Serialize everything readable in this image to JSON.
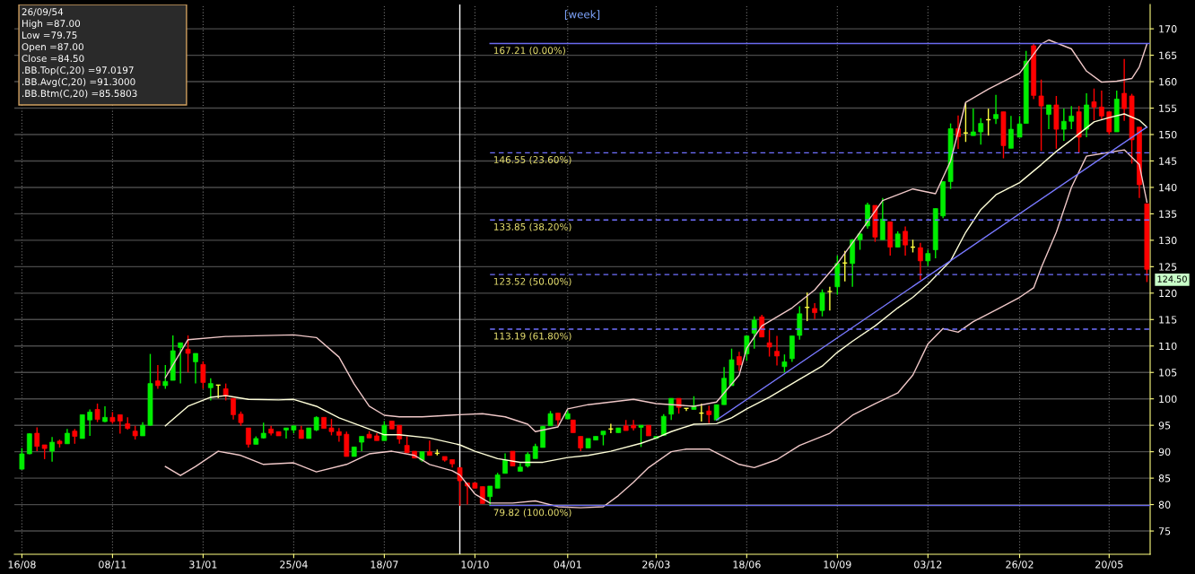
{
  "chart_data": {
    "type": "candlestick",
    "title": "[week]",
    "x": [
      "2010-08-16",
      "2010-08-23",
      "2010-08-30",
      "2010-09-06",
      "2010-09-13",
      "2010-09-20",
      "2010-09-27",
      "2010-10-04",
      "2010-10-11",
      "2010-10-18",
      "2010-10-25",
      "2010-11-01",
      "2010-11-08",
      "2010-11-15",
      "2010-11-22",
      "2010-11-29",
      "2010-12-06",
      "2010-12-13",
      "2010-12-20",
      "2010-12-27",
      "2011-01-03",
      "2011-01-10",
      "2011-01-17",
      "2011-01-24",
      "2011-01-31",
      "2011-02-07",
      "2011-02-14",
      "2011-02-21",
      "2011-02-28",
      "2011-03-07",
      "2011-03-14",
      "2011-03-21",
      "2011-03-28",
      "2011-04-04",
      "2011-04-11",
      "2011-04-18",
      "2011-04-25",
      "2011-05-02",
      "2011-05-09",
      "2011-05-16",
      "2011-05-23",
      "2011-05-30",
      "2011-06-06",
      "2011-06-13",
      "2011-06-20",
      "2011-06-27",
      "2011-07-04",
      "2011-07-11",
      "2011-07-18",
      "2011-07-25",
      "2011-08-01",
      "2011-08-08",
      "2011-08-15",
      "2011-08-22",
      "2011-08-29",
      "2011-09-05",
      "2011-09-12",
      "2011-09-19",
      "2011-09-26",
      "2011-10-03",
      "2011-10-10",
      "2011-10-17",
      "2011-10-24",
      "2011-10-31",
      "2011-11-07",
      "2011-11-14",
      "2011-11-21",
      "2011-11-28",
      "2011-12-05",
      "2011-12-12",
      "2011-12-19",
      "2011-12-26",
      "2012-01-04",
      "2012-01-09",
      "2012-01-16",
      "2012-01-23",
      "2012-01-30",
      "2012-02-06",
      "2012-02-13",
      "2012-02-20",
      "2012-02-27",
      "2012-03-05",
      "2012-03-12",
      "2012-03-19",
      "2012-03-26",
      "2012-04-02",
      "2012-04-09",
      "2012-04-16",
      "2012-04-23",
      "2012-04-30",
      "2012-05-07",
      "2012-05-14",
      "2012-05-21",
      "2012-05-28",
      "2012-06-04",
      "2012-06-11",
      "2012-06-18",
      "2012-06-25",
      "2012-07-02",
      "2012-07-09",
      "2012-07-16",
      "2012-07-23",
      "2012-07-30",
      "2012-08-06",
      "2012-08-13",
      "2012-08-20",
      "2012-08-27",
      "2012-09-03",
      "2012-09-10",
      "2012-09-17",
      "2012-09-24",
      "2012-10-01",
      "2012-10-08",
      "2012-10-15",
      "2012-10-22",
      "2012-10-29",
      "2012-11-05",
      "2012-11-12",
      "2012-11-19",
      "2012-11-26",
      "2012-12-03",
      "2012-12-10",
      "2012-12-17",
      "2012-12-24",
      "2012-12-31",
      "2013-01-07",
      "2013-01-14",
      "2013-01-21",
      "2013-01-28",
      "2013-02-04",
      "2013-02-11",
      "2013-02-18",
      "2013-02-26",
      "2013-03-04",
      "2013-03-11",
      "2013-03-18",
      "2013-03-25",
      "2013-04-01",
      "2013-04-08",
      "2013-04-15",
      "2013-04-22",
      "2013-04-29",
      "2013-05-06",
      "2013-05-13",
      "2013-05-20",
      "2013-05-27",
      "2013-06-03",
      "2013-06-10",
      "2013-06-17",
      "2013-06-24"
    ],
    "ohlc": [
      [
        86.7,
        90.7,
        86.6,
        89.6
      ],
      [
        89.6,
        93.5,
        89.5,
        93.4
      ],
      [
        93.5,
        94.6,
        90.1,
        91.0
      ],
      [
        91.3,
        91.3,
        88.6,
        90.6
      ],
      [
        90.1,
        92.8,
        88.1,
        91.8
      ],
      [
        92.0,
        92.3,
        90.8,
        91.5
      ],
      [
        91.5,
        94.3,
        91.5,
        93.5
      ],
      [
        93.9,
        94.3,
        91.5,
        92.9
      ],
      [
        92.5,
        97.0,
        92.5,
        97.0
      ],
      [
        96.0,
        98.0,
        93.0,
        97.5
      ],
      [
        98.0,
        99.1,
        95.6,
        96.1
      ],
      [
        95.7,
        98.6,
        95.6,
        96.5
      ],
      [
        96.5,
        97.5,
        95.3,
        95.7
      ],
      [
        97.0,
        97.0,
        93.4,
        95.8
      ],
      [
        95.3,
        96.5,
        94.2,
        94.4
      ],
      [
        93.9,
        94.9,
        92.3,
        93.0
      ],
      [
        93.0,
        95.6,
        93.0,
        95.0
      ],
      [
        95.0,
        108.5,
        94.9,
        102.9
      ],
      [
        103.4,
        106.4,
        101.9,
        102.5
      ],
      [
        102.5,
        106.4,
        101.9,
        103.3
      ],
      [
        103.5,
        112.0,
        103.5,
        109.1
      ],
      [
        109.7,
        110.6,
        102.9,
        110.6
      ],
      [
        109.4,
        112.0,
        105.0,
        108.6
      ],
      [
        107.0,
        108.6,
        102.9,
        108.6
      ],
      [
        106.5,
        107.1,
        101.9,
        103.1
      ],
      [
        102.1,
        103.9,
        99.7,
        102.9
      ],
      [
        102.6,
        102.6,
        100.1,
        102.6
      ],
      [
        101.9,
        102.9,
        99.7,
        100.5
      ],
      [
        100.1,
        100.1,
        96.1,
        97.0
      ],
      [
        97.1,
        97.6,
        94.9,
        95.5
      ],
      [
        94.5,
        94.5,
        90.8,
        91.4
      ],
      [
        91.4,
        92.9,
        91.4,
        92.5
      ],
      [
        92.6,
        95.5,
        92.5,
        93.5
      ],
      [
        94.3,
        94.9,
        93.1,
        93.5
      ],
      [
        93.8,
        93.8,
        93.0,
        93.0
      ],
      [
        94.1,
        94.5,
        92.5,
        94.5
      ],
      [
        94.1,
        94.9,
        93.5,
        94.9
      ],
      [
        94.1,
        94.9,
        92.5,
        92.5
      ],
      [
        92.5,
        94.5,
        92.5,
        94.5
      ],
      [
        94.1,
        96.7,
        93.9,
        96.5
      ],
      [
        96.5,
        96.5,
        94.4,
        94.4
      ],
      [
        94.5,
        96.2,
        93.1,
        93.8
      ],
      [
        93.8,
        94.5,
        91.9,
        93.1
      ],
      [
        93.3,
        93.8,
        89.1,
        89.1
      ],
      [
        89.1,
        90.9,
        89.1,
        90.9
      ],
      [
        91.8,
        92.9,
        90.1,
        92.9
      ],
      [
        93.3,
        93.9,
        92.6,
        92.6
      ],
      [
        93.0,
        93.5,
        92.1,
        92.1
      ],
      [
        92.1,
        95.8,
        92.1,
        95.0
      ],
      [
        95.8,
        95.8,
        94.3,
        94.3
      ],
      [
        95.0,
        95.0,
        91.5,
        92.4
      ],
      [
        91.2,
        92.9,
        89.8,
        89.8
      ],
      [
        90.1,
        90.1,
        88.8,
        88.8
      ],
      [
        88.4,
        90.0,
        88.1,
        90.0
      ],
      [
        90.0,
        92.1,
        89.3,
        89.3
      ],
      [
        89.7,
        90.4,
        89.3,
        89.7
      ],
      [
        89.1,
        89.1,
        88.1,
        88.4
      ],
      [
        88.5,
        88.5,
        87.0,
        87.7
      ],
      [
        87.0,
        87.0,
        79.75,
        84.5
      ],
      [
        84.1,
        84.1,
        80.0,
        83.5
      ],
      [
        84.1,
        84.1,
        83.1,
        83.1
      ],
      [
        83.4,
        83.4,
        80.2,
        80.2
      ],
      [
        81.5,
        83.5,
        79.82,
        83.5
      ],
      [
        83.1,
        86.0,
        83.1,
        85.6
      ],
      [
        85.9,
        89.7,
        85.9,
        88.4
      ],
      [
        90.1,
        90.1,
        87.3,
        87.3
      ],
      [
        86.3,
        87.8,
        86.3,
        87.1
      ],
      [
        87.3,
        89.9,
        87.0,
        89.5
      ],
      [
        88.7,
        91.5,
        88.7,
        91.0
      ],
      [
        90.8,
        94.9,
        90.8,
        94.8
      ],
      [
        94.9,
        97.7,
        94.9,
        97.2
      ],
      [
        97.3,
        97.3,
        94.9,
        96.0
      ],
      [
        96.2,
        97.8,
        96.2,
        97.2
      ],
      [
        96.0,
        96.0,
        93.6,
        93.6
      ],
      [
        92.9,
        92.9,
        90.1,
        90.7
      ],
      [
        90.7,
        92.5,
        90.7,
        92.5
      ],
      [
        92.2,
        92.9,
        92.2,
        92.9
      ],
      [
        93.2,
        93.9,
        91.2,
        93.9
      ],
      [
        94.3,
        95.3,
        93.5,
        94.3
      ],
      [
        93.6,
        94.5,
        93.6,
        94.5
      ],
      [
        94.9,
        96.0,
        94.0,
        94.0
      ],
      [
        95.0,
        96.0,
        94.0,
        94.5
      ],
      [
        94.6,
        95.0,
        90.9,
        95.0
      ],
      [
        95.0,
        95.0,
        93.0,
        93.0
      ],
      [
        92.5,
        92.9,
        92.5,
        92.9
      ],
      [
        93.1,
        97.1,
        93.1,
        96.7
      ],
      [
        97.1,
        100.1,
        96.0,
        100.1
      ],
      [
        100.1,
        100.1,
        97.2,
        98.4
      ],
      [
        98.2,
        98.2,
        97.7,
        98.2
      ],
      [
        98.0,
        100.5,
        98.0,
        98.7
      ],
      [
        97.3,
        99.1,
        95.7,
        97.3
      ],
      [
        97.7,
        98.7,
        95.4,
        97.0
      ],
      [
        96.0,
        98.9,
        96.0,
        98.9
      ],
      [
        98.9,
        106.0,
        98.9,
        103.9
      ],
      [
        102.5,
        109.5,
        102.5,
        107.4
      ],
      [
        108.0,
        108.9,
        105.3,
        106.4
      ],
      [
        108.5,
        111.9,
        107.2,
        111.9
      ],
      [
        112.4,
        115.6,
        109.5,
        114.9
      ],
      [
        115.5,
        115.9,
        111.7,
        111.7
      ],
      [
        110.6,
        113.0,
        108.0,
        109.8
      ],
      [
        109.0,
        111.9,
        106.3,
        108.1
      ],
      [
        106.1,
        108.4,
        105.0,
        107.0
      ],
      [
        107.6,
        111.9,
        107.0,
        111.9
      ],
      [
        112.0,
        117.5,
        111.2,
        116.1
      ],
      [
        117.3,
        120.1,
        114.7,
        117.3
      ],
      [
        117.1,
        118.1,
        115.1,
        116.3
      ],
      [
        116.7,
        120.7,
        115.6,
        120.1
      ],
      [
        120.3,
        121.2,
        116.7,
        120.3
      ],
      [
        121.2,
        127.1,
        119.7,
        125.6
      ],
      [
        125.7,
        128.0,
        122.2,
        125.7
      ],
      [
        125.6,
        130.2,
        121.2,
        130.1
      ],
      [
        130.1,
        131.7,
        128.2,
        131.2
      ],
      [
        132.7,
        137.1,
        132.2,
        136.7
      ],
      [
        136.6,
        136.6,
        129.7,
        130.6
      ],
      [
        130.1,
        138.0,
        130.1,
        134.0
      ],
      [
        133.5,
        133.5,
        127.1,
        128.7
      ],
      [
        128.7,
        131.7,
        128.7,
        131.2
      ],
      [
        131.7,
        132.6,
        127.1,
        129.1
      ],
      [
        128.7,
        130.1,
        127.7,
        128.7
      ],
      [
        128.6,
        129.5,
        122.5,
        126.1
      ],
      [
        126.1,
        128.2,
        125.1,
        127.5
      ],
      [
        128.2,
        136.0,
        126.6,
        136.0
      ],
      [
        134.6,
        141.1,
        134.2,
        141.1
      ],
      [
        141.1,
        152.1,
        139.7,
        151.1
      ],
      [
        151.1,
        153.6,
        147.3,
        149.6
      ],
      [
        150.3,
        156.0,
        148.6,
        150.3
      ],
      [
        149.8,
        154.9,
        149.8,
        150.5
      ],
      [
        150.5,
        153.1,
        148.1,
        152.1
      ],
      [
        152.8,
        154.9,
        149.8,
        152.8
      ],
      [
        153.0,
        157.5,
        152.0,
        153.8
      ],
      [
        154.3,
        154.3,
        145.5,
        147.9
      ],
      [
        147.4,
        153.5,
        147.4,
        151.0
      ],
      [
        149.5,
        153.5,
        149.5,
        152.0
      ],
      [
        152.1,
        165.8,
        152.1,
        163.9
      ],
      [
        166.8,
        167.21,
        156.7,
        157.4
      ],
      [
        157.3,
        160.4,
        146.9,
        155.4
      ],
      [
        153.8,
        155.6,
        151.0,
        155.6
      ],
      [
        155.6,
        157.3,
        147.3,
        151.0
      ],
      [
        151.0,
        154.9,
        148.8,
        152.5
      ],
      [
        152.5,
        155.4,
        151.0,
        153.5
      ],
      [
        154.3,
        155.4,
        146.6,
        149.5
      ],
      [
        151.0,
        157.8,
        149.5,
        155.6
      ],
      [
        156.2,
        158.7,
        152.7,
        155.2
      ],
      [
        155.2,
        158.3,
        152.7,
        153.5
      ],
      [
        154.3,
        154.3,
        150.0,
        150.5
      ],
      [
        150.5,
        158.3,
        150.5,
        156.7
      ],
      [
        157.8,
        164.3,
        152.6,
        154.9
      ],
      [
        157.3,
        157.7,
        144.5,
        149.0
      ],
      [
        151.4,
        151.4,
        138.0,
        140.5
      ],
      [
        136.9,
        136.9,
        122.1,
        124.5
      ]
    ],
    "series": [
      {
        "type": "line",
        "color": "#f0c8c8",
        "x": [
          "2010-12-27",
          "2011-01-17",
          "2011-02-21",
          "2011-04-25",
          "2011-05-16",
          "2011-06-06",
          "2011-06-20",
          "2011-07-04",
          "2011-07-18",
          "2011-08-01",
          "2011-08-22",
          "2011-09-26",
          "2011-10-17",
          "2011-11-07",
          "2011-11-28",
          "2011-12-05",
          "2011-12-26",
          "2012-01-04",
          "2012-01-23",
          "2012-03-05",
          "2012-03-26",
          "2012-04-30",
          "2012-05-21",
          "2012-05-28",
          "2012-06-11",
          "2012-06-18",
          "2012-07-02",
          "2012-07-30",
          "2012-08-20",
          "2012-09-10",
          "2012-10-01",
          "2012-10-22",
          "2012-11-19",
          "2012-12-10",
          "2012-12-24",
          "2013-01-07",
          "2013-01-28",
          "2013-02-26",
          "2013-03-18",
          "2013-03-25",
          "2013-04-15",
          "2013-04-29",
          "2013-05-13",
          "2013-05-27",
          "2013-06-10",
          "2013-06-17",
          "2013-06-24"
        ],
        "values": [
          104.0,
          111.2,
          111.8,
          112.1,
          111.6,
          107.9,
          102.8,
          98.6,
          96.9,
          96.6,
          96.6,
          97.0,
          97.2,
          96.6,
          95.2,
          93.8,
          94.7,
          98.1,
          98.9,
          99.9,
          99.1,
          98.6,
          99.4,
          101.1,
          104.5,
          109.6,
          113.8,
          117.2,
          120.6,
          125.6,
          131.5,
          137.5,
          139.7,
          138.8,
          145.0,
          156.1,
          158.6,
          161.6,
          167.1,
          167.9,
          166.2,
          162.0,
          159.9,
          160.1,
          160.6,
          162.8,
          167.1
        ]
      },
      {
        "type": "line",
        "color": "#ffffd8",
        "x": [
          "2010-12-27",
          "2011-01-17",
          "2011-02-07",
          "2011-02-21",
          "2011-03-14",
          "2011-04-11",
          "2011-04-25",
          "2011-05-16",
          "2011-06-06",
          "2011-07-04",
          "2011-07-18",
          "2011-08-01",
          "2011-08-29",
          "2011-09-26",
          "2011-10-10",
          "2011-10-31",
          "2011-11-21",
          "2011-12-12",
          "2012-01-04",
          "2012-01-23",
          "2012-02-13",
          "2012-03-12",
          "2012-03-26",
          "2012-04-09",
          "2012-04-30",
          "2012-05-21",
          "2012-06-04",
          "2012-06-18",
          "2012-07-09",
          "2012-08-06",
          "2012-08-27",
          "2012-09-10",
          "2012-09-24",
          "2012-10-15",
          "2012-11-05",
          "2012-11-19",
          "2012-12-03",
          "2012-12-24",
          "2013-01-07",
          "2013-01-21",
          "2013-02-04",
          "2013-02-26",
          "2013-03-18",
          "2013-04-01",
          "2013-04-15",
          "2013-05-06",
          "2013-05-20",
          "2013-06-03",
          "2013-06-17",
          "2013-06-24"
        ],
        "values": [
          94.9,
          98.6,
          100.3,
          100.6,
          99.9,
          99.8,
          99.9,
          98.6,
          96.4,
          94.3,
          93.2,
          93.2,
          92.6,
          91.3,
          90.1,
          88.7,
          88.0,
          88.0,
          88.9,
          89.3,
          90.1,
          91.6,
          92.6,
          93.8,
          95.2,
          95.3,
          96.4,
          98.1,
          100.3,
          103.7,
          106.2,
          108.8,
          110.9,
          113.8,
          117.2,
          119.2,
          121.7,
          126.1,
          131.5,
          135.8,
          138.6,
          140.9,
          144.3,
          146.8,
          149.0,
          152.4,
          153.2,
          153.9,
          152.7,
          151.4
        ]
      },
      {
        "type": "line",
        "color": "#f0c8c8",
        "x": [
          "2010-12-27",
          "2011-01-10",
          "2011-01-24",
          "2011-02-14",
          "2011-03-07",
          "2011-03-28",
          "2011-04-25",
          "2011-05-16",
          "2011-06-13",
          "2011-07-04",
          "2011-07-25",
          "2011-08-15",
          "2011-08-29",
          "2011-09-19",
          "2011-09-26",
          "2011-10-10",
          "2011-10-24",
          "2011-11-14",
          "2011-12-05",
          "2011-12-26",
          "2012-01-16",
          "2012-02-06",
          "2012-02-20",
          "2012-03-05",
          "2012-03-19",
          "2012-04-09",
          "2012-04-23",
          "2012-05-14",
          "2012-06-11",
          "2012-06-25",
          "2012-07-16",
          "2012-08-06",
          "2012-09-03",
          "2012-09-24",
          "2012-10-15",
          "2012-11-05",
          "2012-11-19",
          "2012-12-03",
          "2012-12-17",
          "2012-12-31",
          "2013-01-14",
          "2013-02-04",
          "2013-02-26",
          "2013-03-11",
          "2013-03-18",
          "2013-04-01",
          "2013-04-15",
          "2013-04-29",
          "2013-05-13",
          "2013-06-03",
          "2013-06-17",
          "2013-06-24"
        ],
        "values": [
          87.2,
          85.5,
          87.2,
          90.1,
          89.3,
          87.6,
          87.9,
          86.2,
          87.6,
          89.6,
          90.1,
          89.3,
          87.6,
          86.4,
          85.6,
          82.0,
          80.3,
          80.3,
          80.7,
          79.6,
          79.4,
          79.6,
          81.7,
          84.2,
          87.0,
          90.0,
          90.5,
          90.5,
          87.6,
          87.0,
          88.5,
          91.2,
          93.5,
          96.9,
          99.1,
          101.1,
          104.5,
          110.4,
          113.3,
          112.6,
          114.6,
          116.8,
          119.2,
          121.0,
          124.8,
          131.5,
          140.0,
          145.9,
          146.4,
          147.1,
          144.3,
          137.2
        ]
      },
      {
        "type": "line",
        "color": "#7878ff",
        "x": [
          "2012-05-21",
          "2013-06-24"
        ],
        "values": [
          96.0,
          151.4
        ]
      },
      {
        "type": "line",
        "name": "167.21 (0.00%)",
        "color": "#6a6af0",
        "line_style": "solid",
        "x": [
          "2011-10-24",
          "2013-06-27"
        ],
        "values": [
          167.21,
          167.21
        ]
      },
      {
        "type": "line",
        "name": "146.55 (23.60%)",
        "color": "#7070ff",
        "line_style": "dashed",
        "x": [
          "2011-10-24",
          "2013-06-27"
        ],
        "values": [
          146.55,
          146.55
        ]
      },
      {
        "type": "line",
        "name": "133.85 (38.20%)",
        "color": "#7070ff",
        "line_style": "dashed",
        "x": [
          "2011-10-24",
          "2013-06-27"
        ],
        "values": [
          133.85,
          133.85
        ]
      },
      {
        "type": "line",
        "name": "123.52 (50.00%)",
        "color": "#7070ff",
        "line_style": "dashed",
        "x": [
          "2011-10-24",
          "2013-06-27"
        ],
        "values": [
          123.52,
          123.52
        ]
      },
      {
        "type": "line",
        "name": "113.19 (61.80%)",
        "color": "#7070ff",
        "line_style": "dashed",
        "x": [
          "2011-10-24",
          "2013-06-27"
        ],
        "values": [
          113.19,
          113.19
        ]
      },
      {
        "type": "line",
        "name": "79.82 (100.00%)",
        "color": "#6a6af0",
        "line_style": "solid",
        "x": [
          "2011-10-24",
          "2013-06-27"
        ],
        "values": [
          79.82,
          79.82
        ]
      }
    ],
    "ref_lines": [
      {
        "axis": "x",
        "value": "2011-09-26",
        "color": "#ffffff"
      }
    ],
    "xlim": [
      "2010-08-09",
      "2013-06-27"
    ],
    "xticks": [
      {
        "value": "2010-08-16",
        "label": "16/08"
      },
      {
        "value": "2010-11-08",
        "label": "08/11"
      },
      {
        "value": "2011-01-31",
        "label": "31/01"
      },
      {
        "value": "2011-04-25",
        "label": "25/04"
      },
      {
        "value": "2011-07-18",
        "label": "18/07"
      },
      {
        "value": "2011-10-10",
        "label": "10/10"
      },
      {
        "value": "2012-01-04",
        "label": "04/01"
      },
      {
        "value": "2012-03-26",
        "label": "26/03"
      },
      {
        "value": "2012-06-18",
        "label": "18/06"
      },
      {
        "value": "2012-09-10",
        "label": "10/09"
      },
      {
        "value": "2012-12-03",
        "label": "03/12"
      },
      {
        "value": "2013-02-26",
        "label": "26/02"
      },
      {
        "value": "2013-05-20",
        "label": "20/05"
      }
    ],
    "ylim": [
      70.6,
      174.6
    ],
    "yticks": [
      75,
      80,
      85,
      90,
      95,
      100,
      105,
      110,
      115,
      120,
      125,
      130,
      135,
      140,
      145,
      150,
      155,
      160,
      165,
      170
    ],
    "grid": true,
    "annotations": [
      "26/09/54",
      "High =87.00",
      "Low =79.75",
      "Open =87.00",
      "Close =84.50",
      ".BB.Top(C,20) =97.0197",
      ".BB.Avg(C,20) =91.3000",
      ".BB.Btm(C,20) =85.5803",
      {
        "text": "124.50",
        "x": "2013-06-24",
        "y": 124.5
      }
    ]
  }
}
